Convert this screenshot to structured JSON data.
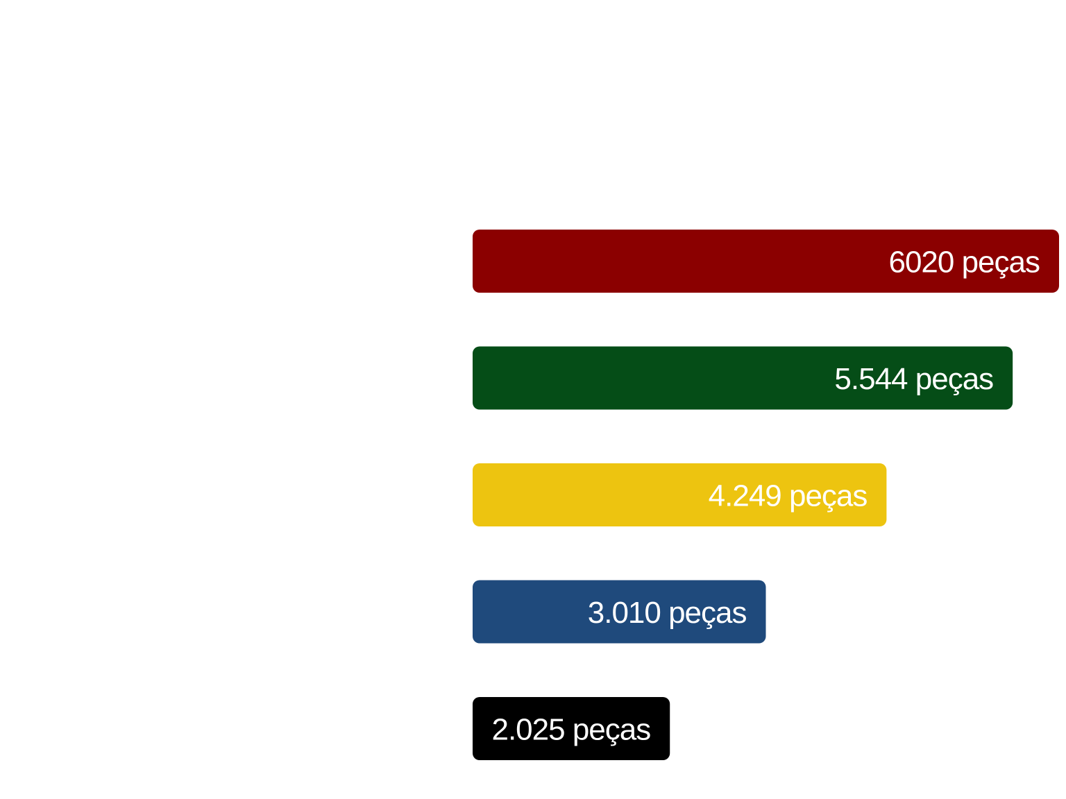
{
  "chart_data": {
    "type": "bar",
    "orientation": "horizontal",
    "title": "",
    "xlabel": "",
    "ylabel": "",
    "grid": false,
    "legend": "none",
    "xlim": [
      0,
      6020
    ],
    "series": [
      {
        "values": [
          6020,
          5544,
          4249,
          3010,
          2025
        ],
        "labels": [
          "6020 peças",
          "5.544 peças",
          "4.249 peças",
          "3.010 peças",
          "2.025 peças"
        ],
        "colors": [
          "#8b0000",
          "#054d17",
          "#edc410",
          "#1f4a7c",
          "#000000"
        ]
      }
    ]
  }
}
